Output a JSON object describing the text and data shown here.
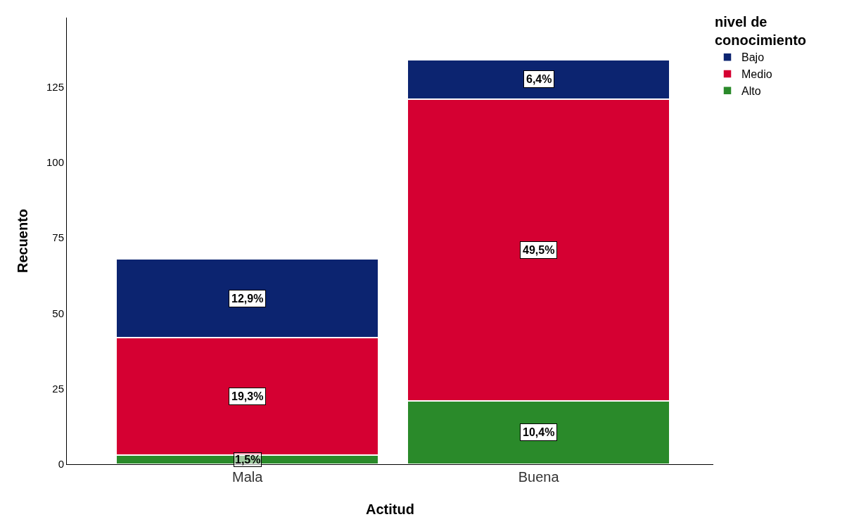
{
  "chart_data": {
    "type": "bar",
    "stacked": true,
    "xlabel": "Actitud",
    "ylabel": "Recuento",
    "legend_title": "nivel de conocimiento",
    "categories": [
      "Mala",
      "Buena"
    ],
    "series": [
      {
        "name": "Alto",
        "color": "#2a8a2a",
        "values": [
          3,
          21
        ]
      },
      {
        "name": "Medio",
        "color": "#d50032",
        "values": [
          39,
          100
        ]
      },
      {
        "name": "Bajo",
        "color": "#0c2470",
        "values": [
          26,
          13
        ]
      }
    ],
    "annotations": [
      "1,5%",
      "10,4%",
      "19,3%",
      "49,5%",
      "12,9%",
      "6,4%"
    ],
    "ylim": [
      0,
      148
    ],
    "yticks": [
      0,
      25,
      50,
      75,
      100,
      125
    ],
    "grid": false,
    "legend": "top right"
  }
}
